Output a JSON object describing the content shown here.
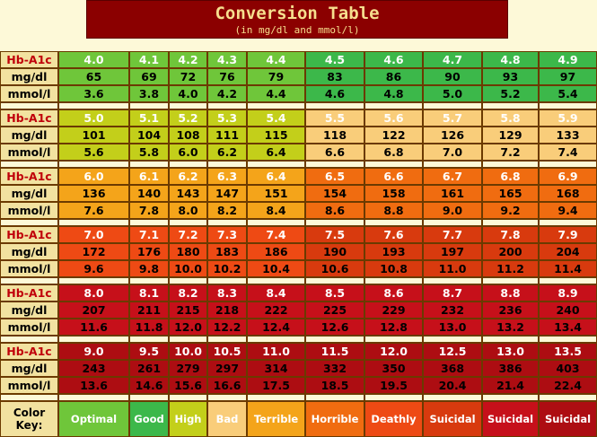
{
  "title": "Conversion Table",
  "subtitle": "(in mg/dl and mmol/l)",
  "chart_data": {
    "type": "table",
    "row_labels": {
      "hba1c": "Hb-A1c",
      "mgdl": "mg/dl",
      "mmol": "mmol/l"
    },
    "bands": [
      {
        "hba1c": [
          "4.0",
          "4.1",
          "4.2",
          "4.3",
          "4.4",
          "4.5",
          "4.6",
          "4.7",
          "4.8",
          "4.9"
        ],
        "mgdl": [
          "65",
          "69",
          "72",
          "76",
          "79",
          "83",
          "86",
          "90",
          "93",
          "97"
        ],
        "mmol": [
          "3.6",
          "3.8",
          "4.0",
          "4.2",
          "4.4",
          "4.6",
          "4.8",
          "5.0",
          "5.2",
          "5.4"
        ]
      },
      {
        "hba1c": [
          "5.0",
          "5.1",
          "5.2",
          "5.3",
          "5.4",
          "5.5",
          "5.6",
          "5.7",
          "5.8",
          "5.9"
        ],
        "mgdl": [
          "101",
          "104",
          "108",
          "111",
          "115",
          "118",
          "122",
          "126",
          "129",
          "133"
        ],
        "mmol": [
          "5.6",
          "5.8",
          "6.0",
          "6.2",
          "6.4",
          "6.6",
          "6.8",
          "7.0",
          "7.2",
          "7.4"
        ]
      },
      {
        "hba1c": [
          "6.0",
          "6.1",
          "6.2",
          "6.3",
          "6.4",
          "6.5",
          "6.6",
          "6.7",
          "6.8",
          "6.9"
        ],
        "mgdl": [
          "136",
          "140",
          "143",
          "147",
          "151",
          "154",
          "158",
          "161",
          "165",
          "168"
        ],
        "mmol": [
          "7.6",
          "7.8",
          "8.0",
          "8.2",
          "8.4",
          "8.6",
          "8.8",
          "9.0",
          "9.2",
          "9.4"
        ]
      },
      {
        "hba1c": [
          "7.0",
          "7.1",
          "7.2",
          "7.3",
          "7.4",
          "7.5",
          "7.6",
          "7.7",
          "7.8",
          "7.9"
        ],
        "mgdl": [
          "172",
          "176",
          "180",
          "183",
          "186",
          "190",
          "193",
          "197",
          "200",
          "204"
        ],
        "mmol": [
          "9.6",
          "9.8",
          "10.0",
          "10.2",
          "10.4",
          "10.6",
          "10.8",
          "11.0",
          "11.2",
          "11.4"
        ]
      },
      {
        "hba1c": [
          "8.0",
          "8.1",
          "8.2",
          "8.3",
          "8.4",
          "8.5",
          "8.6",
          "8.7",
          "8.8",
          "8.9"
        ],
        "mgdl": [
          "207",
          "211",
          "215",
          "218",
          "222",
          "225",
          "229",
          "232",
          "236",
          "240"
        ],
        "mmol": [
          "11.6",
          "11.8",
          "12.0",
          "12.2",
          "12.4",
          "12.6",
          "12.8",
          "13.0",
          "13.2",
          "13.4"
        ]
      },
      {
        "hba1c": [
          "9.0",
          "9.5",
          "10.0",
          "10.5",
          "11.0",
          "11.5",
          "12.0",
          "12.5",
          "13.0",
          "13.5"
        ],
        "mgdl": [
          "243",
          "261",
          "279",
          "297",
          "314",
          "332",
          "350",
          "368",
          "386",
          "403"
        ],
        "mmol": [
          "13.6",
          "14.6",
          "15.6",
          "16.6",
          "17.5",
          "18.5",
          "19.5",
          "20.4",
          "21.4",
          "22.4"
        ]
      }
    ],
    "band_colors": [
      [
        "#6fc63a",
        "#6fc63a",
        "#6fc63a",
        "#6fc63a",
        "#6fc63a",
        "#3cb84a",
        "#3cb84a",
        "#3cb84a",
        "#3cb84a",
        "#3cb84a"
      ],
      [
        "#c3cf1a",
        "#c3cf1a",
        "#c3cf1a",
        "#c3cf1a",
        "#c3cf1a",
        "#f9cd7a",
        "#f9cd7a",
        "#f9cd7a",
        "#f9cd7a",
        "#f9cd7a"
      ],
      [
        "#f4a41a",
        "#f4a41a",
        "#f4a41a",
        "#f4a41a",
        "#f4a41a",
        "#f06c10",
        "#f06c10",
        "#f06c10",
        "#f06c10",
        "#f06c10"
      ],
      [
        "#ee4a14",
        "#ee4a14",
        "#ee4a14",
        "#ee4a14",
        "#ee4a14",
        "#d83a0e",
        "#d83a0e",
        "#d83a0e",
        "#d83a0e",
        "#d83a0e"
      ],
      [
        "#c6101a",
        "#c6101a",
        "#c6101a",
        "#c6101a",
        "#c6101a",
        "#c6101a",
        "#c6101a",
        "#c6101a",
        "#c6101a",
        "#c6101a"
      ],
      [
        "#ad0d12",
        "#ad0d12",
        "#ad0d12",
        "#ad0d12",
        "#ad0d12",
        "#ad0d12",
        "#ad0d12",
        "#ad0d12",
        "#ad0d12",
        "#ad0d12"
      ]
    ],
    "hba1c_text_colors": [
      [
        "#fff",
        "#fff",
        "#fff",
        "#fff",
        "#fff",
        "#fff",
        "#fff",
        "#fff",
        "#fff",
        "#fff"
      ],
      [
        "#fff",
        "#fff",
        "#fff",
        "#fff",
        "#fff",
        "#fff",
        "#fff",
        "#fff",
        "#fff",
        "#fff"
      ],
      [
        "#fff",
        "#fff",
        "#fff",
        "#fff",
        "#fff",
        "#fff",
        "#fff",
        "#fff",
        "#fff",
        "#fff"
      ],
      [
        "#fff",
        "#fff",
        "#fff",
        "#fff",
        "#fff",
        "#fff",
        "#fff",
        "#fff",
        "#fff",
        "#fff"
      ],
      [
        "#fff",
        "#fff",
        "#fff",
        "#fff",
        "#fff",
        "#fff",
        "#fff",
        "#fff",
        "#fff",
        "#fff"
      ],
      [
        "#fff",
        "#fff",
        "#fff",
        "#fff",
        "#fff",
        "#fff",
        "#fff",
        "#fff",
        "#fff",
        "#fff"
      ]
    ],
    "color_key": {
      "label": "Color Key:",
      "items": [
        {
          "name": "Optimal",
          "color": "#6fc63a",
          "text": "#fff"
        },
        {
          "name": "Good",
          "color": "#3cb84a",
          "text": "#fff"
        },
        {
          "name": "High",
          "color": "#c3cf1a",
          "text": "#fff"
        },
        {
          "name": "Bad",
          "color": "#f9cd7a",
          "text": "#fff"
        },
        {
          "name": "Terrible",
          "color": "#f4a41a",
          "text": "#fff"
        },
        {
          "name": "Horrible",
          "color": "#f06c10",
          "text": "#fff"
        },
        {
          "name": "Deathly",
          "color": "#ee4a14",
          "text": "#fff"
        },
        {
          "name": "Suicidal",
          "color": "#d83a0e",
          "text": "#fff"
        },
        {
          "name": "Suicidal",
          "color": "#c6101a",
          "text": "#fff"
        },
        {
          "name": "Suicidal",
          "color": "#ad0d12",
          "text": "#fff"
        }
      ]
    }
  }
}
